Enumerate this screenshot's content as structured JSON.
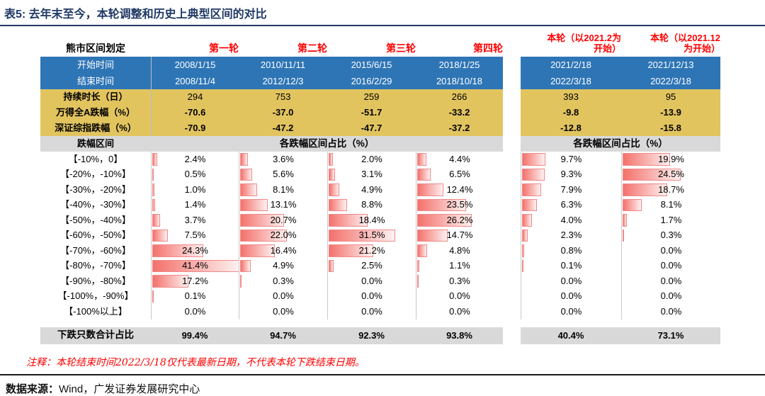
{
  "title": "表5:  去年末至今，本轮调整和历史上典型区间的对比",
  "colors": {
    "navy": "#1F3864",
    "blue": "#2E75B6",
    "gold": "#E2C45F",
    "gray_band": "#D9D9D9",
    "red": "#FF0000",
    "bar_border": "#F08A8A",
    "bar_gradient_start": "#F4716C",
    "bar_gradient_end": "#FDF1F0"
  },
  "table": {
    "corner_label": "熊市区间划定",
    "row_labels": {
      "start": "开始时间",
      "end": "结束时间",
      "duration": "持续时长（日）",
      "wind_a": "万得全A跌幅（%）",
      "sz_comp": "深证综指跌幅（%）",
      "interval": "跌幅区间",
      "share_header": "各跌幅区间占比（%）",
      "summary": "下跌只数合计占比"
    }
  },
  "chart_data": {
    "type": "bar",
    "unit": "%",
    "bar_scale_max": 41.4,
    "categories": [
      "【-10%，0】",
      "【-20%，-10%】",
      "【-30%，-20%】",
      "【-40%，-30%】",
      "【-50%，-40%】",
      "【-60%，-50%】",
      "【-70%，-60%】",
      "【-80%，-70%】",
      "【-90%，-80%】",
      "【-100%，-90%】",
      "【-100%以上】"
    ],
    "series": [
      {
        "name": "第一轮",
        "name_lines": [
          "第一轮"
        ],
        "start": "2008/1/15",
        "end": "2008/11/4",
        "duration_days": "294",
        "wind_a_decline": "-70.6",
        "sz_comp_decline": "-70.9",
        "values": [
          2.4,
          0.5,
          1.0,
          1.4,
          3.7,
          7.5,
          24.3,
          41.4,
          17.2,
          0.1,
          0.0
        ],
        "total": "99.4%"
      },
      {
        "name": "第二轮",
        "name_lines": [
          "第二轮"
        ],
        "start": "2010/11/11",
        "end": "2012/12/3",
        "duration_days": "753",
        "wind_a_decline": "-37.0",
        "sz_comp_decline": "-47.2",
        "values": [
          3.6,
          5.6,
          8.1,
          13.1,
          20.7,
          22.0,
          16.4,
          4.9,
          0.3,
          0.0,
          0.0
        ],
        "total": "94.7%"
      },
      {
        "name": "第三轮",
        "name_lines": [
          "第三轮"
        ],
        "start": "2015/6/15",
        "end": "2016/2/29",
        "duration_days": "259",
        "wind_a_decline": "-51.7",
        "sz_comp_decline": "-47.7",
        "values": [
          2.0,
          3.1,
          4.9,
          8.8,
          18.4,
          31.5,
          21.2,
          2.5,
          0.0,
          0.0,
          0.0
        ],
        "total": "92.3%"
      },
      {
        "name": "第四轮",
        "name_lines": [
          "第四轮"
        ],
        "start": "2018/1/25",
        "end": "2018/10/18",
        "duration_days": "266",
        "wind_a_decline": "-33.2",
        "sz_comp_decline": "-37.2",
        "values": [
          4.4,
          6.5,
          12.4,
          23.5,
          26.2,
          14.7,
          4.8,
          1.1,
          0.3,
          0.0,
          0.0
        ],
        "total": "93.8%"
      },
      {
        "name": "本轮（以2021.2为开始）",
        "name_lines": [
          "本轮（以2021.2为",
          "开始）"
        ],
        "start": "2021/2/18",
        "end": "2022/3/18",
        "duration_days": "393",
        "wind_a_decline": "-9.8",
        "sz_comp_decline": "-12.8",
        "values": [
          9.7,
          9.3,
          7.9,
          6.3,
          4.0,
          2.3,
          0.8,
          0.1,
          0.0,
          0.0,
          0.0
        ],
        "total": "40.4%"
      },
      {
        "name": "本轮（以2021.12为开始）",
        "name_lines": [
          "本轮（以2021.12",
          "为开始）"
        ],
        "start": "2021/12/13",
        "end": "2022/3/18",
        "duration_days": "95",
        "wind_a_decline": "-13.9",
        "sz_comp_decline": "-15.8",
        "values": [
          19.9,
          24.5,
          18.7,
          8.1,
          1.7,
          0.3,
          0.0,
          0.0,
          0.0,
          0.0,
          0.0
        ],
        "total": "73.1%"
      }
    ]
  },
  "footnote": "注释：本轮结束时间2022/3/18仅代表最新日期，不代表本轮下跌结束日期。",
  "source": {
    "label": "数据来源：",
    "text": "Wind，广发证券发展研究中心"
  }
}
